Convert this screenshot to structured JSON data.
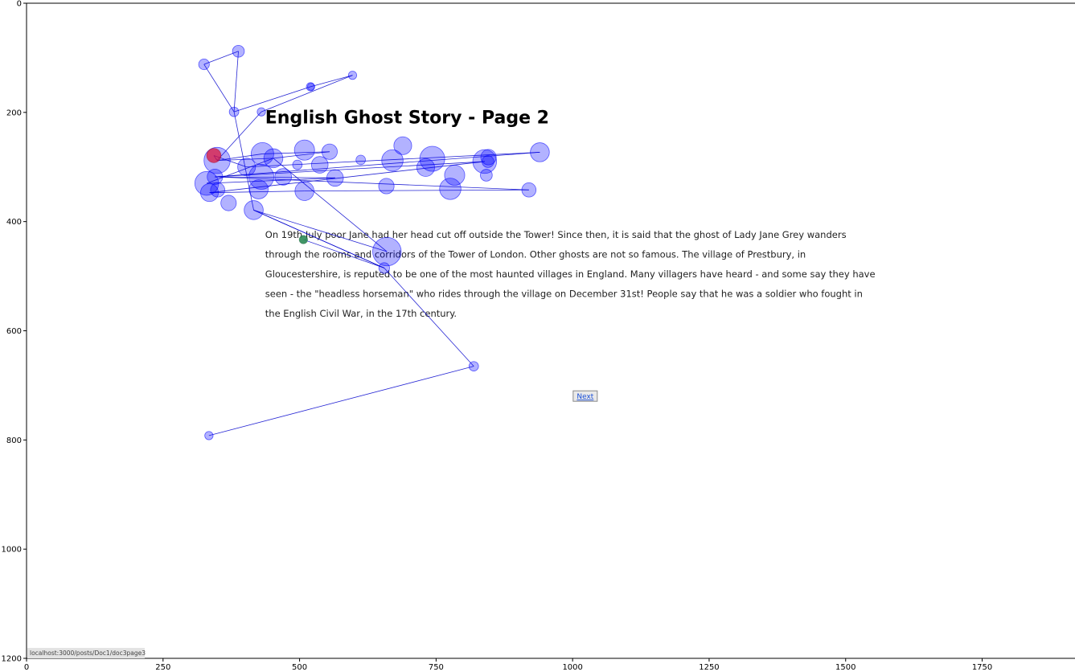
{
  "chart_data": {
    "type": "scatter",
    "xlim": [
      0,
      1920
    ],
    "ylim": [
      1200,
      0
    ],
    "x_ticks": [
      0,
      250,
      500,
      750,
      1000,
      1250,
      1500,
      1750
    ],
    "y_ticks": [
      0,
      200,
      400,
      600,
      800,
      1000,
      1200
    ],
    "grid": false,
    "colors": {
      "fixation": "#0000ff",
      "start": "#2e8b57",
      "end": "#dc143c",
      "scanpath": "#0000cc"
    },
    "page_content": {
      "title": "English Ghost Story - Page 2",
      "body_lines": [
        "On 19th July poor Jane had her head cut off outside the Tower! Since then, it is said that the ghost of Lady Jane Grey wanders",
        "through the rooms and corridors of the Tower of London. Other ghosts are not so famous. The village of Prestbury, in",
        "Gloucestershire, is reputed to be one of the most haunted villages in England. Many villagers have heard - and some say they have",
        "seen - the \"headless horseman\" who rides through the village on December 31st! People say that he was a soldier who fought in",
        "the English Civil War, in the 17th century."
      ],
      "next_button": "Next",
      "status_url": "localhost:3000/posts/Doc1/doc3page3"
    },
    "fixations": [
      {
        "x": 507,
        "y": 433,
        "r": 7,
        "kind": "start"
      },
      {
        "x": 655,
        "y": 485,
        "r": 9
      },
      {
        "x": 416,
        "y": 379,
        "r": 16
      },
      {
        "x": 380,
        "y": 199,
        "r": 8
      },
      {
        "x": 388,
        "y": 88,
        "r": 10
      },
      {
        "x": 325,
        "y": 112,
        "r": 9
      },
      {
        "x": 520,
        "y": 153,
        "r": 7
      },
      {
        "x": 597,
        "y": 132,
        "r": 7
      },
      {
        "x": 521,
        "y": 153,
        "r": 6
      },
      {
        "x": 430,
        "y": 199,
        "r": 7
      },
      {
        "x": 349,
        "y": 288,
        "r": 22
      },
      {
        "x": 343,
        "y": 279,
        "r": 12,
        "kind": "end"
      },
      {
        "x": 432,
        "y": 276,
        "r": 19
      },
      {
        "x": 452,
        "y": 284,
        "r": 16
      },
      {
        "x": 509,
        "y": 269,
        "r": 17
      },
      {
        "x": 555,
        "y": 272,
        "r": 13
      },
      {
        "x": 612,
        "y": 287,
        "r": 8
      },
      {
        "x": 689,
        "y": 261,
        "r": 15
      },
      {
        "x": 670,
        "y": 288,
        "r": 18
      },
      {
        "x": 743,
        "y": 285,
        "r": 21
      },
      {
        "x": 846,
        "y": 282,
        "r": 13
      },
      {
        "x": 845,
        "y": 290,
        "r": 10
      },
      {
        "x": 839,
        "y": 290,
        "r": 20
      },
      {
        "x": 940,
        "y": 273,
        "r": 16
      },
      {
        "x": 731,
        "y": 301,
        "r": 15
      },
      {
        "x": 784,
        "y": 315,
        "r": 17
      },
      {
        "x": 842,
        "y": 315,
        "r": 10
      },
      {
        "x": 537,
        "y": 296,
        "r": 14
      },
      {
        "x": 496,
        "y": 296,
        "r": 8
      },
      {
        "x": 403,
        "y": 300,
        "r": 15
      },
      {
        "x": 430,
        "y": 318,
        "r": 21
      },
      {
        "x": 470,
        "y": 318,
        "r": 14
      },
      {
        "x": 565,
        "y": 320,
        "r": 14
      },
      {
        "x": 345,
        "y": 318,
        "r": 13
      },
      {
        "x": 330,
        "y": 330,
        "r": 20
      },
      {
        "x": 425,
        "y": 341,
        "r": 16
      },
      {
        "x": 509,
        "y": 344,
        "r": 16
      },
      {
        "x": 350,
        "y": 342,
        "r": 12
      },
      {
        "x": 335,
        "y": 347,
        "r": 15
      },
      {
        "x": 370,
        "y": 366,
        "r": 13
      },
      {
        "x": 659,
        "y": 335,
        "r": 13
      },
      {
        "x": 776,
        "y": 340,
        "r": 18
      },
      {
        "x": 920,
        "y": 342,
        "r": 12
      },
      {
        "x": 660,
        "y": 455,
        "r": 24
      },
      {
        "x": 819,
        "y": 665,
        "r": 8
      },
      {
        "x": 334,
        "y": 792,
        "r": 7
      }
    ],
    "scanpath": [
      [
        507,
        433
      ],
      [
        655,
        485
      ],
      [
        416,
        379
      ],
      [
        380,
        199
      ],
      [
        388,
        88
      ],
      [
        325,
        112
      ],
      [
        380,
        199
      ],
      [
        520,
        153
      ],
      [
        597,
        132
      ],
      [
        430,
        199
      ],
      [
        349,
        288
      ],
      [
        452,
        284
      ],
      [
        555,
        272
      ],
      [
        432,
        276
      ],
      [
        349,
        288
      ],
      [
        343,
        279
      ],
      [
        403,
        300
      ],
      [
        940,
        273
      ],
      [
        345,
        318
      ],
      [
        839,
        290
      ],
      [
        335,
        347
      ],
      [
        509,
        344
      ],
      [
        920,
        342
      ],
      [
        345,
        318
      ],
      [
        565,
        320
      ],
      [
        330,
        330
      ],
      [
        452,
        284
      ],
      [
        660,
        455
      ],
      [
        416,
        379
      ],
      [
        655,
        485
      ],
      [
        819,
        665
      ],
      [
        334,
        792
      ]
    ]
  }
}
